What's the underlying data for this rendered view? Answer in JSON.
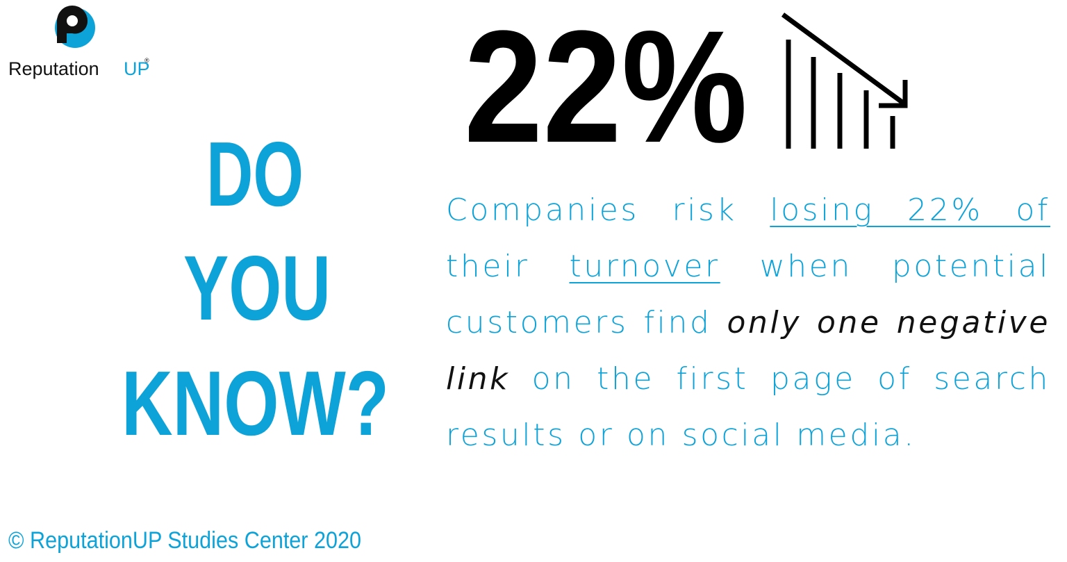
{
  "logo": {
    "name": "Reputation",
    "accent": "UP",
    "mark": "®"
  },
  "headline": {
    "lines": [
      "DO",
      "YOU",
      "KNOW?"
    ]
  },
  "stat": {
    "text": "22%"
  },
  "paragraph": {
    "segments": [
      {
        "text": "Companies risk ",
        "style": "normal"
      },
      {
        "text": "losing 22% of",
        "style": "underline"
      },
      {
        "text": " their ",
        "style": "normal"
      },
      {
        "text": "turnover",
        "style": "underline"
      },
      {
        "text": " when potential customers find ",
        "style": "normal"
      },
      {
        "text": "only one negative link",
        "style": "italic"
      },
      {
        "text": " on the first page of search results or on social media.",
        "style": "normal"
      }
    ]
  },
  "footer": {
    "text": "© ReputationUP Studies Center 2020"
  }
}
